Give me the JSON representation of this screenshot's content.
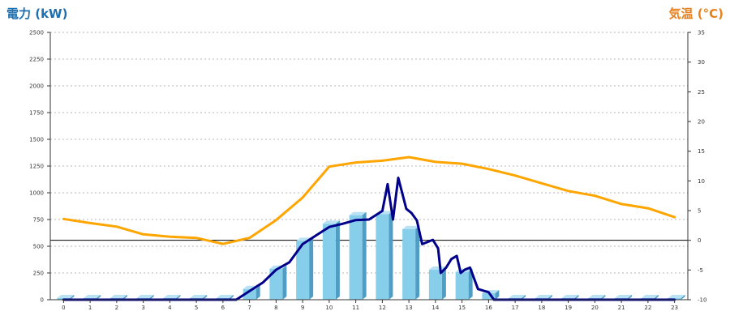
{
  "chart_data": {
    "type": "bar",
    "left_axis_title": "電力 (kW)",
    "right_axis_title": "気温 (°C)",
    "left_axis_ticks": [
      "0",
      "250",
      "500",
      "750",
      "1000",
      "1250",
      "1500",
      "1750",
      "2000",
      "2250",
      "2500"
    ],
    "right_axis_ticks": [
      "-10",
      "-5",
      "0",
      "5",
      "10",
      "15",
      "20",
      "25",
      "30",
      "35"
    ],
    "left_ylim": [
      0,
      2500
    ],
    "right_ylim": [
      -10,
      35
    ],
    "grid": "horizontal dotted",
    "categories": [
      "0",
      "1",
      "2",
      "3",
      "4",
      "5",
      "6",
      "7",
      "8",
      "9",
      "10",
      "11",
      "12",
      "13",
      "14",
      "15",
      "16",
      "17",
      "18",
      "19",
      "20",
      "21",
      "22",
      "23"
    ],
    "series": [
      {
        "kind": "bar",
        "axis": "left",
        "values": [
          10,
          10,
          10,
          10,
          10,
          10,
          10,
          100,
          290,
          550,
          710,
          790,
          800,
          660,
          280,
          260,
          60,
          10,
          10,
          10,
          10,
          10,
          10,
          10
        ]
      },
      {
        "kind": "line",
        "axis": "right",
        "x": [
          0,
          1,
          2,
          3,
          4,
          5,
          6,
          7,
          8,
          9,
          10,
          11,
          12,
          13,
          14,
          15,
          16,
          17,
          18,
          19,
          20,
          21,
          22,
          23
        ],
        "values": [
          3.6,
          2.9,
          2.3,
          1.0,
          0.6,
          0.4,
          -0.6,
          0.4,
          3.4,
          7.2,
          12.4,
          13.1,
          13.4,
          14.0,
          13.2,
          12.9,
          12.0,
          10.9,
          9.6,
          8.3,
          7.5,
          6.1,
          5.4,
          3.9
        ]
      },
      {
        "kind": "line",
        "axis": "left",
        "x": [
          0,
          6.5,
          7,
          7.5,
          8,
          8.5,
          9,
          9.5,
          10,
          10.5,
          11,
          11.5,
          12,
          12.2,
          12.4,
          12.6,
          12.9,
          13.1,
          13.3,
          13.5,
          13.9,
          14.1,
          14.2,
          14.4,
          14.6,
          14.8,
          14.95,
          15.1,
          15.3,
          15.6,
          16,
          16.2,
          17,
          23
        ],
        "values": [
          0,
          0,
          80,
          160,
          280,
          350,
          520,
          600,
          680,
          710,
          745,
          750,
          830,
          1080,
          750,
          1140,
          850,
          810,
          740,
          520,
          560,
          480,
          250,
          300,
          380,
          410,
          250,
          280,
          300,
          100,
          70,
          0,
          0,
          0
        ]
      }
    ],
    "colors": {
      "bar": "#87CEEB",
      "temperature_line": "#FFA500",
      "power_line": "#00008B",
      "left_title": "#1E6FB0",
      "right_title": "#E8801C"
    }
  }
}
